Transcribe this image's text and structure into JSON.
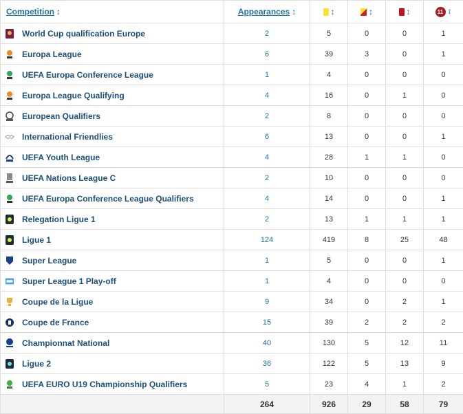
{
  "header": {
    "competition": "Competition",
    "appearances": "Appearances",
    "sort_arrow": "↕",
    "sub_badge": "11"
  },
  "rows": [
    {
      "name": "World Cup qualification Europe",
      "logo": "wc-qualification-logo-icon",
      "apps": "2",
      "yellow": "5",
      "yellow_red": "0",
      "red": "0",
      "subbed": "1"
    },
    {
      "name": "Europa League",
      "logo": "europa-league-logo-icon",
      "apps": "6",
      "yellow": "39",
      "yellow_red": "3",
      "red": "0",
      "subbed": "1"
    },
    {
      "name": "UEFA Europa Conference League",
      "logo": "conference-league-logo-icon",
      "apps": "1",
      "yellow": "4",
      "yellow_red": "0",
      "red": "0",
      "subbed": "0"
    },
    {
      "name": "Europa League Qualifying",
      "logo": "europa-league-qualifying-logo-icon",
      "apps": "4",
      "yellow": "16",
      "yellow_red": "0",
      "red": "1",
      "subbed": "0"
    },
    {
      "name": "European Qualifiers",
      "logo": "european-qualifiers-logo-icon",
      "apps": "2",
      "yellow": "8",
      "yellow_red": "0",
      "red": "0",
      "subbed": "0"
    },
    {
      "name": "International Friendlies",
      "logo": "handshake-logo-icon",
      "apps": "6",
      "yellow": "13",
      "yellow_red": "0",
      "red": "0",
      "subbed": "1"
    },
    {
      "name": "UEFA Youth League",
      "logo": "youth-league-logo-icon",
      "apps": "4",
      "yellow": "28",
      "yellow_red": "1",
      "red": "1",
      "subbed": "0"
    },
    {
      "name": "UEFA Nations League C",
      "logo": "nations-league-logo-icon",
      "apps": "2",
      "yellow": "10",
      "yellow_red": "0",
      "red": "0",
      "subbed": "0"
    },
    {
      "name": "UEFA Europa Conference League Qualifiers",
      "logo": "conference-league-qualifiers-logo-icon",
      "apps": "4",
      "yellow": "14",
      "yellow_red": "0",
      "red": "0",
      "subbed": "1"
    },
    {
      "name": "Relegation Ligue 1",
      "logo": "ligue1-relegation-logo-icon",
      "apps": "2",
      "yellow": "13",
      "yellow_red": "1",
      "red": "1",
      "subbed": "1"
    },
    {
      "name": "Ligue 1",
      "logo": "ligue1-logo-icon",
      "apps": "124",
      "yellow": "419",
      "yellow_red": "8",
      "red": "25",
      "subbed": "48"
    },
    {
      "name": "Super League",
      "logo": "super-league-logo-icon",
      "apps": "1",
      "yellow": "5",
      "yellow_red": "0",
      "red": "0",
      "subbed": "1"
    },
    {
      "name": "Super League 1 Play-off",
      "logo": "super-league-playoff-logo-icon",
      "apps": "1",
      "yellow": "4",
      "yellow_red": "0",
      "red": "0",
      "subbed": "0"
    },
    {
      "name": "Coupe de la Ligue",
      "logo": "coupe-de-la-ligue-logo-icon",
      "apps": "9",
      "yellow": "34",
      "yellow_red": "0",
      "red": "2",
      "subbed": "1"
    },
    {
      "name": "Coupe de France",
      "logo": "coupe-de-france-logo-icon",
      "apps": "15",
      "yellow": "39",
      "yellow_red": "2",
      "red": "2",
      "subbed": "2"
    },
    {
      "name": "Championnat National",
      "logo": "championnat-national-logo-icon",
      "apps": "40",
      "yellow": "130",
      "yellow_red": "5",
      "red": "12",
      "subbed": "11"
    },
    {
      "name": "Ligue 2",
      "logo": "ligue2-logo-icon",
      "apps": "36",
      "yellow": "122",
      "yellow_red": "5",
      "red": "13",
      "subbed": "9"
    },
    {
      "name": "UEFA EURO U19 Championship Qualifiers",
      "logo": "euro-u19-logo-icon",
      "apps": "5",
      "yellow": "23",
      "yellow_red": "4",
      "red": "1",
      "subbed": "2"
    }
  ],
  "totals": {
    "apps": "264",
    "yellow": "926",
    "yellow_red": "29",
    "red": "58",
    "subbed": "79"
  },
  "colors": {
    "link": "#1d75a3",
    "name": "#1d4f7c",
    "yellow_card": "#f9e233",
    "red_card": "#c1121f",
    "sub_badge": "#a51e22",
    "total_bg": "#f2f2f2"
  }
}
